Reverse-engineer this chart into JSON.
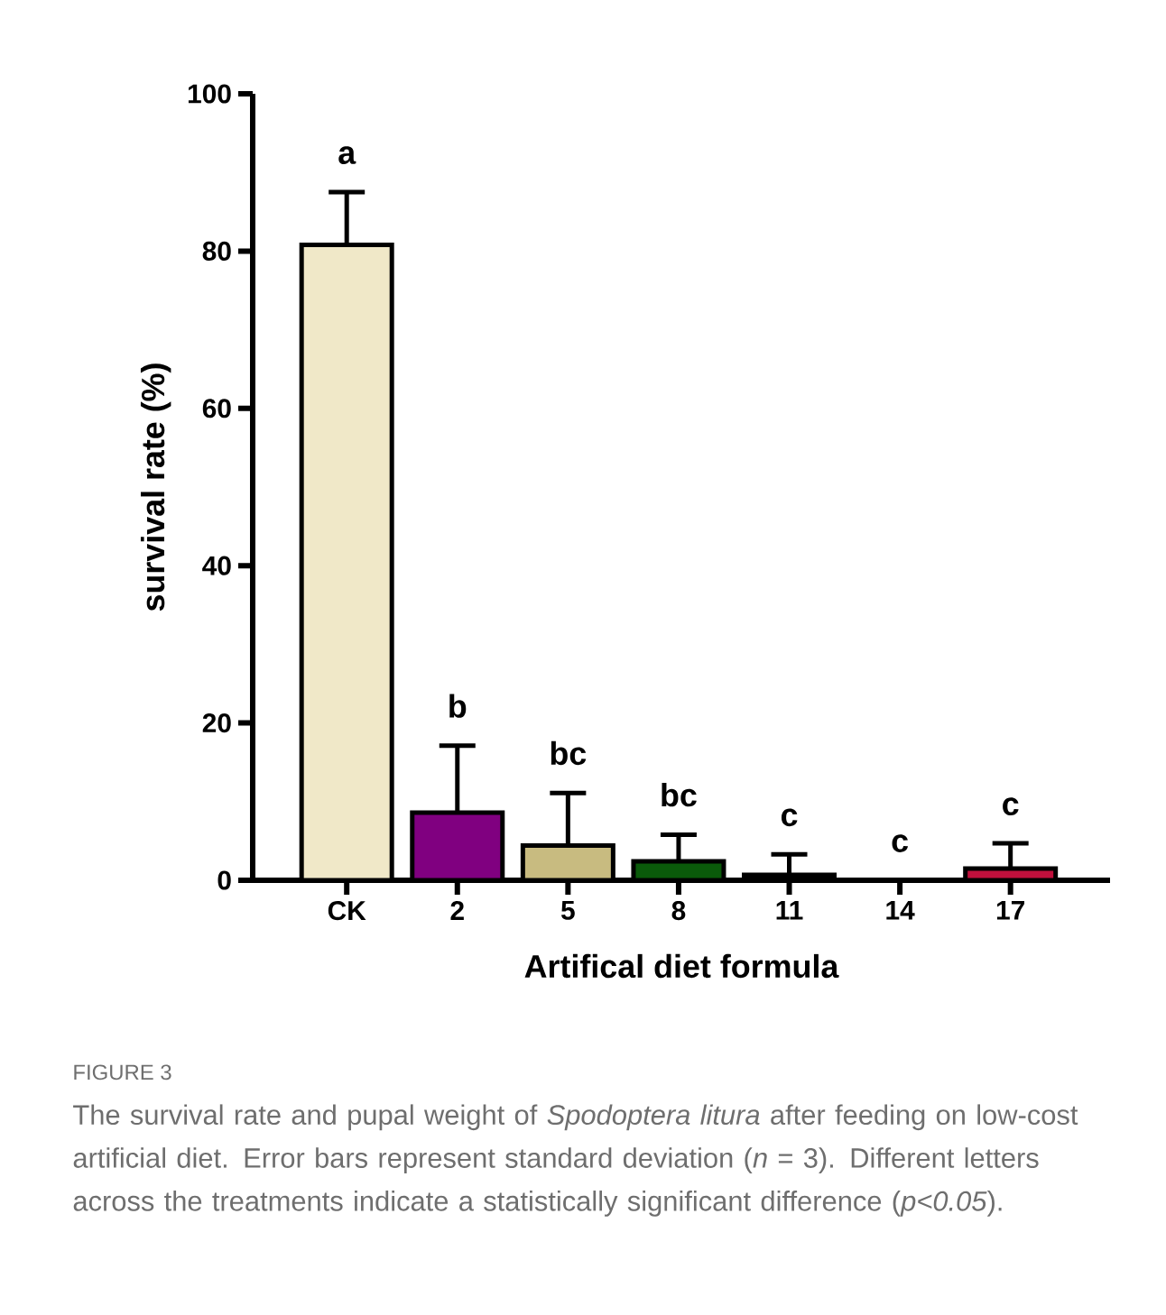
{
  "chart_data": {
    "type": "bar",
    "xlabel": "Artifical diet formula",
    "ylabel": "survival rate (%)",
    "categories": [
      "CK",
      "2",
      "5",
      "8",
      "11",
      "14",
      "17"
    ],
    "values": [
      80.8,
      8.6,
      4.4,
      2.4,
      0.7,
      0,
      1.5
    ],
    "errors": [
      6.7,
      8.5,
      6.7,
      3.4,
      2.6,
      null,
      3.2
    ],
    "colors": [
      "#f0e8c8",
      "#800080",
      "#c8bb80",
      "#0a5a0a",
      "#000000",
      "#000000",
      "#c0103c"
    ],
    "ylim": [
      0,
      100
    ],
    "yticks": [
      0,
      20,
      40,
      60,
      80,
      100
    ],
    "annotations": [
      "a",
      "b",
      "bc",
      "bc",
      "c",
      "c",
      "c",
      "FIGURE 3",
      "The survival rate and pupal weight of *Spodoptera litura* after feeding on low-cost artificial diet. Error bars represent standard deviation (*n* = 3). Different letters across the treatments indicate a statistically significant difference (*p<0.05*)."
    ]
  }
}
